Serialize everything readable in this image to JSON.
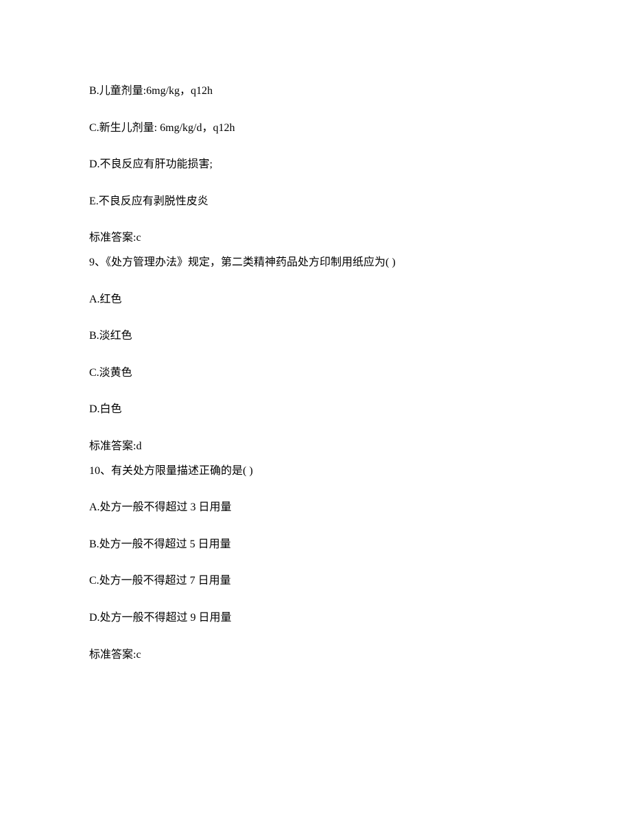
{
  "q8": {
    "option_b": "B.儿童剂量:6mg/kg，q12h",
    "option_c": "C.新生儿剂量: 6mg/kg/d，q12h",
    "option_d": "D.不良反应有肝功能损害;",
    "option_e": "E.不良反应有剥脱性皮炎",
    "answer": "标准答案:c"
  },
  "q9": {
    "stem": "9、《处方管理办法》规定，第二类精神药品处方印制用纸应为( )",
    "option_a": "A.红色",
    "option_b": "B.淡红色",
    "option_c": "C.淡黄色",
    "option_d": "D.白色",
    "answer": "标准答案:d"
  },
  "q10": {
    "stem": "10、有关处方限量描述正确的是( )",
    "option_a": "A.处方一般不得超过 3 日用量",
    "option_b": "B.处方一般不得超过 5 日用量",
    "option_c": "C.处方一般不得超过 7 日用量",
    "option_d": "D.处方一般不得超过 9 日用量",
    "answer": "标准答案:c"
  }
}
